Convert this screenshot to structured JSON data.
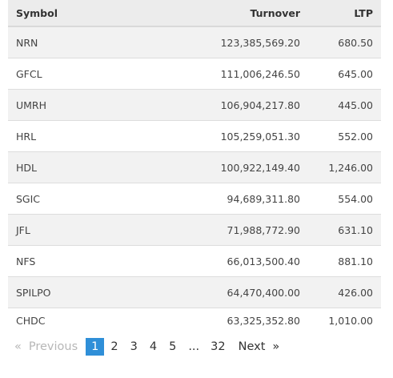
{
  "table": {
    "headers": {
      "symbol": "Symbol",
      "turnover": "Turnover",
      "ltp": "LTP"
    },
    "rows": [
      {
        "symbol": "NRN",
        "turnover": "123,385,569.20",
        "ltp": "680.50"
      },
      {
        "symbol": "GFCL",
        "turnover": "111,006,246.50",
        "ltp": "645.00"
      },
      {
        "symbol": "UMRH",
        "turnover": "106,904,217.80",
        "ltp": "445.00"
      },
      {
        "symbol": "HRL",
        "turnover": "105,259,051.30",
        "ltp": "552.00"
      },
      {
        "symbol": "HDL",
        "turnover": "100,922,149.40",
        "ltp": "1,246.00"
      },
      {
        "symbol": "SGIC",
        "turnover": "94,689,311.80",
        "ltp": "554.00"
      },
      {
        "symbol": "JFL",
        "turnover": "71,988,772.90",
        "ltp": "631.10"
      },
      {
        "symbol": "NFS",
        "turnover": "66,013,500.40",
        "ltp": "881.10"
      },
      {
        "symbol": "SPILPO",
        "turnover": "64,470,400.00",
        "ltp": "426.00"
      },
      {
        "symbol": "CHDC",
        "turnover": "63,325,352.80",
        "ltp": "1,010.00"
      }
    ]
  },
  "pagination": {
    "prev_arrow": "«",
    "prev_label": "Previous",
    "pages": [
      "1",
      "2",
      "3",
      "4",
      "5"
    ],
    "current": "1",
    "ellipsis": "...",
    "last_page": "32",
    "next_label": "Next",
    "next_arrow": "»",
    "active_color": "#2f8fd8"
  }
}
